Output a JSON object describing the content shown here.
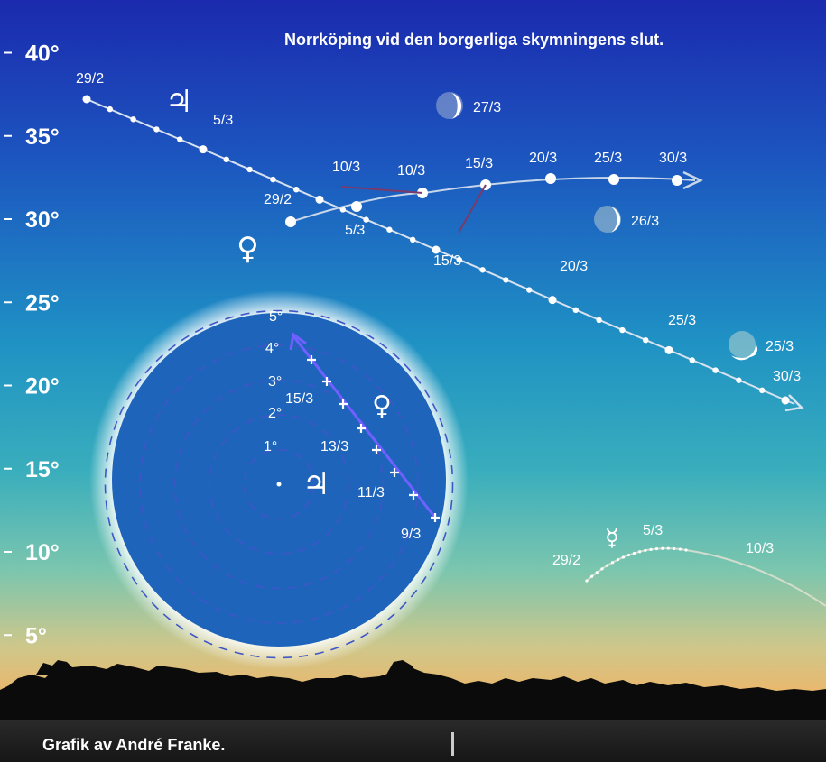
{
  "title": "Norrköping vid den borgerliga skymningens slut.",
  "credit": "Grafik av André Franke.",
  "altitude_axis": {
    "labels": [
      "40°",
      "35°",
      "30°",
      "25°",
      "20°",
      "15°",
      "10°",
      "5°"
    ],
    "values": [
      40,
      35,
      30,
      25,
      20,
      15,
      10,
      5
    ]
  },
  "symbols": {
    "jupiter": "♃",
    "venus": "♀",
    "mercury": "☿"
  },
  "jupiter_track": {
    "date_labels": [
      "29/2",
      "5/3",
      "10/3",
      "15/3",
      "20/3",
      "25/3",
      "30/3"
    ]
  },
  "venus_track": {
    "date_labels": [
      "29/2",
      "5/3",
      "10/3",
      "15/3",
      "20/3",
      "25/3",
      "30/3"
    ]
  },
  "mercury_track": {
    "date_labels": [
      "29/2",
      "5/3",
      "10/3"
    ]
  },
  "moon_dates": [
    "25/3",
    "26/3",
    "27/3"
  ],
  "inset": {
    "ring_labels": [
      "1°",
      "2°",
      "3°",
      "4°",
      "5°"
    ],
    "date_labels": [
      "9/3",
      "11/3",
      "13/3",
      "15/3"
    ]
  },
  "colors": {
    "sky_top": "#1b2fb0",
    "sky_mid": "#1f8fc0",
    "sky_low": "#6fc8b0",
    "horizon": "#f2b060",
    "inset_disk": "#1e64ba",
    "track_venus": "#c8d6ea",
    "inset_track": "#7060ff"
  }
}
